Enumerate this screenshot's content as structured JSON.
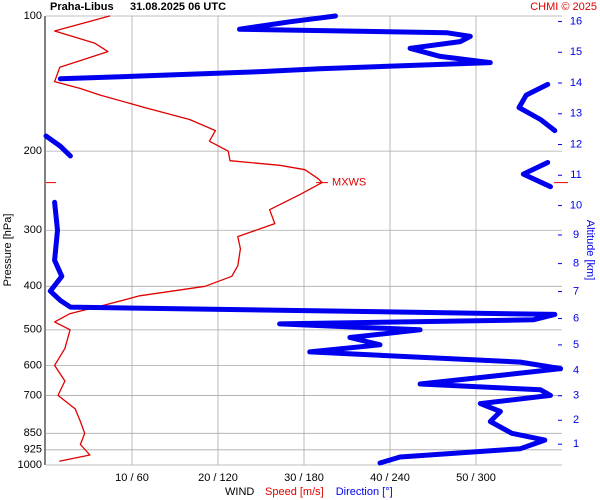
{
  "chart_data": {
    "type": "line",
    "station": "Praha-Libus",
    "title": "31.08.2025 06 UTC",
    "credit": "CHMI © 2025",
    "legend_title": "WIND",
    "ylabel": "Pressure [hPa]",
    "y2label": "Altitude [km]",
    "log_y": true,
    "grid": true,
    "ylim": [
      100,
      1000
    ],
    "yticks": [
      100,
      200,
      300,
      400,
      500,
      600,
      700,
      850,
      925,
      1000
    ],
    "xlim": [
      0,
      60
    ],
    "x2lim": [
      0,
      360
    ],
    "xticks": [
      {
        "value": 10,
        "label": "10 / 60"
      },
      {
        "value": 20,
        "label": "20 / 120"
      },
      {
        "value": 30,
        "label": "30 / 180"
      },
      {
        "value": 40,
        "label": "40 / 240"
      },
      {
        "value": 50,
        "label": "50 / 300"
      }
    ],
    "y2ticks": [
      1,
      2,
      3,
      4,
      5,
      6,
      7,
      8,
      9,
      10,
      11,
      12,
      13,
      14,
      15,
      16
    ],
    "series": [
      {
        "name": "Speed [m/s]",
        "color": "#e00000",
        "values": [
          7.4,
          1,
          5.7,
          7.2,
          1.6,
          1,
          4,
          6.3,
          11.5,
          16.7,
          19.7,
          19,
          21.2,
          21.4,
          27.2,
          30.1,
          31.6,
          32.1,
          29.5,
          26,
          26.6,
          22.3,
          22.6,
          22.3,
          21.6,
          18.5,
          10.9,
          6.9,
          2.8,
          1,
          2.8,
          2.2,
          1,
          2.2,
          1.4,
          3.4,
          4,
          4.5,
          4,
          5.1,
          1.6
        ],
        "pressure": [
          100,
          108,
          115,
          120,
          130,
          140,
          145,
          150,
          160,
          170,
          180,
          190,
          200,
          210,
          215,
          220,
          230,
          235,
          250,
          270,
          290,
          310,
          330,
          360,
          380,
          400,
          420,
          440,
          460,
          480,
          500,
          550,
          600,
          650,
          700,
          750,
          800,
          850,
          900,
          950,
          980
        ]
      },
      {
        "name": "Direction [°]",
        "color": "#0000ee",
        "axis": "x2",
        "values": [
          202,
          170,
          135,
          280,
          296,
          289,
          254,
          275,
          310,
          191,
          150,
          66,
          10,
          null,
          350,
          335,
          330,
          345,
          355,
          null,
          0,
          10,
          17,
          null,
          350,
          333,
          352,
          null,
          6,
          8,
          6,
          11,
          3,
          10,
          17,
          355,
          340,
          163,
          261,
          212,
          233,
          184,
          331,
          359,
          320,
          261,
          345,
          352,
          303,
          317,
          310,
          325,
          348,
          331,
          247,
          233
        ],
        "pressure": [
          100,
          103,
          107,
          109,
          111,
          114,
          118,
          123,
          127,
          131,
          133,
          136,
          138,
          null,
          142,
          150,
          160,
          170,
          180,
          null,
          185,
          195,
          205,
          null,
          212,
          225,
          240,
          null,
          260,
          300,
          350,
          380,
          410,
          430,
          445,
          462,
          475,
          485,
          500,
          520,
          540,
          560,
          590,
          610,
          630,
          660,
          680,
          700,
          730,
          760,
          800,
          850,
          880,
          920,
          960,
          990
        ]
      }
    ],
    "annotation": {
      "text": "MXWS",
      "pressure": 235,
      "speed": 32.1
    }
  }
}
